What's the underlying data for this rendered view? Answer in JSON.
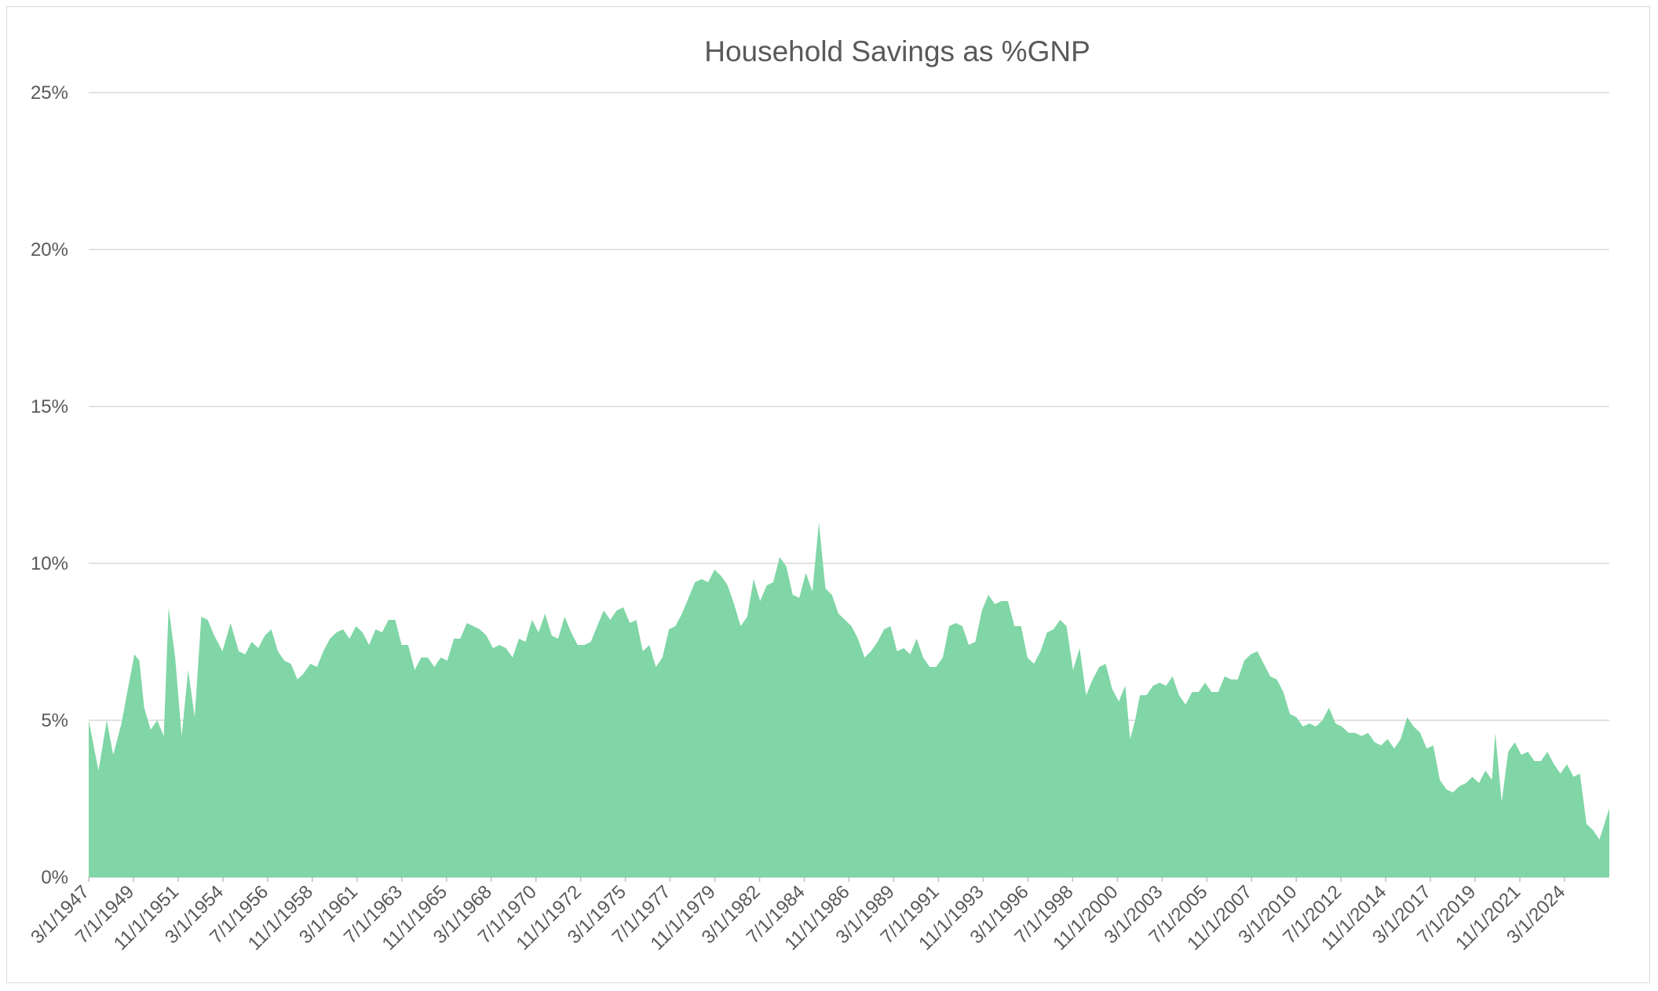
{
  "chart_data": {
    "type": "area",
    "title": "Household Savings as %GNP",
    "xlabel": "",
    "ylabel": "",
    "ylim": [
      0,
      25
    ],
    "y_ticks": [
      0,
      5,
      10,
      15,
      20,
      25
    ],
    "y_tick_labels": [
      "0%",
      "5%",
      "10%",
      "15%",
      "20%",
      "25%"
    ],
    "x_start": "1947-03-01",
    "x_end": "2024-12-01",
    "grid": true,
    "legend": "none",
    "fill_color": "#80D6A6",
    "x_tick_labels": [
      "3/1/1947",
      "7/1/1949",
      "11/1/1951",
      "3/1/1954",
      "7/1/1956",
      "11/1/1958",
      "3/1/1961",
      "7/1/1963",
      "11/1/1965",
      "3/1/1968",
      "7/1/1970",
      "11/1/1972",
      "3/1/1975",
      "7/1/1977",
      "11/1/1979",
      "3/1/1982",
      "7/1/1984",
      "11/1/1986",
      "3/1/1989",
      "7/1/1991",
      "11/1/1993",
      "3/1/1996",
      "7/1/1998",
      "11/1/2000",
      "3/1/2003",
      "7/1/2005",
      "11/1/2007",
      "3/1/2010",
      "7/1/2012",
      "11/1/2014",
      "3/1/2017",
      "7/1/2019",
      "11/1/2021",
      "3/1/2024"
    ],
    "series": [
      {
        "values": [
          {
            "x": "1947-03-01",
            "y": 5.0
          },
          {
            "x": "1947-09-01",
            "y": 3.4
          },
          {
            "x": "1948-02-01",
            "y": 5.0
          },
          {
            "x": "1948-06-01",
            "y": 3.9
          },
          {
            "x": "1948-11-01",
            "y": 4.9
          },
          {
            "x": "1949-03-01",
            "y": 6.0
          },
          {
            "x": "1949-07-01",
            "y": 7.1
          },
          {
            "x": "1949-10-01",
            "y": 6.9
          },
          {
            "x": "1950-01-01",
            "y": 5.4
          },
          {
            "x": "1950-05-01",
            "y": 4.7
          },
          {
            "x": "1950-09-01",
            "y": 5.0
          },
          {
            "x": "1951-01-01",
            "y": 4.5
          },
          {
            "x": "1951-04-01",
            "y": 8.6
          },
          {
            "x": "1951-08-01",
            "y": 7.0
          },
          {
            "x": "1951-12-01",
            "y": 4.5
          },
          {
            "x": "1952-04-01",
            "y": 6.6
          },
          {
            "x": "1952-08-01",
            "y": 5.1
          },
          {
            "x": "1952-12-01",
            "y": 8.3
          },
          {
            "x": "1953-04-01",
            "y": 8.2
          },
          {
            "x": "1953-08-01",
            "y": 7.7
          },
          {
            "x": "1954-01-01",
            "y": 7.2
          },
          {
            "x": "1954-06-01",
            "y": 8.1
          },
          {
            "x": "1954-11-01",
            "y": 7.2
          },
          {
            "x": "1955-03-01",
            "y": 7.1
          },
          {
            "x": "1955-07-01",
            "y": 7.5
          },
          {
            "x": "1955-11-01",
            "y": 7.3
          },
          {
            "x": "1956-03-01",
            "y": 7.7
          },
          {
            "x": "1956-07-01",
            "y": 7.9
          },
          {
            "x": "1956-11-01",
            "y": 7.2
          },
          {
            "x": "1957-03-01",
            "y": 6.9
          },
          {
            "x": "1957-07-01",
            "y": 6.8
          },
          {
            "x": "1957-11-01",
            "y": 6.3
          },
          {
            "x": "1958-03-01",
            "y": 6.5
          },
          {
            "x": "1958-07-01",
            "y": 6.8
          },
          {
            "x": "1958-11-01",
            "y": 6.7
          },
          {
            "x": "1959-03-01",
            "y": 7.2
          },
          {
            "x": "1959-07-01",
            "y": 7.6
          },
          {
            "x": "1959-11-01",
            "y": 7.8
          },
          {
            "x": "1960-03-01",
            "y": 7.9
          },
          {
            "x": "1960-07-01",
            "y": 7.6
          },
          {
            "x": "1960-11-01",
            "y": 8.0
          },
          {
            "x": "1961-03-01",
            "y": 7.8
          },
          {
            "x": "1961-07-01",
            "y": 7.4
          },
          {
            "x": "1961-11-01",
            "y": 7.9
          },
          {
            "x": "1962-03-01",
            "y": 7.8
          },
          {
            "x": "1962-07-01",
            "y": 8.2
          },
          {
            "x": "1962-11-01",
            "y": 8.2
          },
          {
            "x": "1963-03-01",
            "y": 7.4
          },
          {
            "x": "1963-07-01",
            "y": 7.4
          },
          {
            "x": "1963-11-01",
            "y": 6.6
          },
          {
            "x": "1964-03-01",
            "y": 7.0
          },
          {
            "x": "1964-07-01",
            "y": 7.0
          },
          {
            "x": "1964-11-01",
            "y": 6.7
          },
          {
            "x": "1965-03-01",
            "y": 7.0
          },
          {
            "x": "1965-07-01",
            "y": 6.9
          },
          {
            "x": "1965-11-01",
            "y": 7.6
          },
          {
            "x": "1966-03-01",
            "y": 7.6
          },
          {
            "x": "1966-07-01",
            "y": 8.1
          },
          {
            "x": "1966-11-01",
            "y": 8.0
          },
          {
            "x": "1967-03-01",
            "y": 7.9
          },
          {
            "x": "1967-07-01",
            "y": 7.7
          },
          {
            "x": "1967-11-01",
            "y": 7.3
          },
          {
            "x": "1968-03-01",
            "y": 7.4
          },
          {
            "x": "1968-07-01",
            "y": 7.3
          },
          {
            "x": "1968-11-01",
            "y": 7.0
          },
          {
            "x": "1969-03-01",
            "y": 7.6
          },
          {
            "x": "1969-07-01",
            "y": 7.5
          },
          {
            "x": "1969-11-01",
            "y": 8.2
          },
          {
            "x": "1970-03-01",
            "y": 7.8
          },
          {
            "x": "1970-07-01",
            "y": 8.4
          },
          {
            "x": "1970-11-01",
            "y": 7.7
          },
          {
            "x": "1971-03-01",
            "y": 7.6
          },
          {
            "x": "1971-07-01",
            "y": 8.3
          },
          {
            "x": "1971-11-01",
            "y": 7.8
          },
          {
            "x": "1972-03-01",
            "y": 7.4
          },
          {
            "x": "1972-07-01",
            "y": 7.4
          },
          {
            "x": "1972-11-01",
            "y": 7.5
          },
          {
            "x": "1973-03-01",
            "y": 8.0
          },
          {
            "x": "1973-07-01",
            "y": 8.5
          },
          {
            "x": "1973-11-01",
            "y": 8.2
          },
          {
            "x": "1974-03-01",
            "y": 8.5
          },
          {
            "x": "1974-07-01",
            "y": 8.6
          },
          {
            "x": "1974-11-01",
            "y": 8.1
          },
          {
            "x": "1975-03-01",
            "y": 8.2
          },
          {
            "x": "1975-07-01",
            "y": 7.2
          },
          {
            "x": "1975-11-01",
            "y": 7.4
          },
          {
            "x": "1976-03-01",
            "y": 6.7
          },
          {
            "x": "1976-07-01",
            "y": 7.0
          },
          {
            "x": "1976-11-01",
            "y": 7.9
          },
          {
            "x": "1977-03-01",
            "y": 8.0
          },
          {
            "x": "1977-07-01",
            "y": 8.4
          },
          {
            "x": "1977-11-01",
            "y": 8.9
          },
          {
            "x": "1978-03-01",
            "y": 9.4
          },
          {
            "x": "1978-07-01",
            "y": 9.5
          },
          {
            "x": "1978-11-01",
            "y": 9.4
          },
          {
            "x": "1979-03-01",
            "y": 9.8
          },
          {
            "x": "1979-07-01",
            "y": 9.6
          },
          {
            "x": "1979-11-01",
            "y": 9.3
          },
          {
            "x": "1980-03-01",
            "y": 8.7
          },
          {
            "x": "1980-07-01",
            "y": 8.0
          },
          {
            "x": "1980-11-01",
            "y": 8.3
          },
          {
            "x": "1981-03-01",
            "y": 9.5
          },
          {
            "x": "1981-07-01",
            "y": 8.8
          },
          {
            "x": "1981-11-01",
            "y": 9.3
          },
          {
            "x": "1982-03-01",
            "y": 9.4
          },
          {
            "x": "1982-07-01",
            "y": 10.2
          },
          {
            "x": "1982-11-01",
            "y": 9.9
          },
          {
            "x": "1983-03-01",
            "y": 9.0
          },
          {
            "x": "1983-07-01",
            "y": 8.9
          },
          {
            "x": "1983-11-01",
            "y": 9.7
          },
          {
            "x": "1984-03-01",
            "y": 9.1
          },
          {
            "x": "1984-07-01",
            "y": 11.3
          },
          {
            "x": "1984-11-01",
            "y": 9.2
          },
          {
            "x": "1985-03-01",
            "y": 9.0
          },
          {
            "x": "1985-07-01",
            "y": 8.4
          },
          {
            "x": "1985-11-01",
            "y": 8.2
          },
          {
            "x": "1986-03-01",
            "y": 8.0
          },
          {
            "x": "1986-07-01",
            "y": 7.6
          },
          {
            "x": "1986-11-01",
            "y": 7.0
          },
          {
            "x": "1987-03-01",
            "y": 7.2
          },
          {
            "x": "1987-07-01",
            "y": 7.5
          },
          {
            "x": "1987-11-01",
            "y": 7.9
          },
          {
            "x": "1988-03-01",
            "y": 8.0
          },
          {
            "x": "1988-07-01",
            "y": 7.2
          },
          {
            "x": "1988-11-01",
            "y": 7.3
          },
          {
            "x": "1989-03-01",
            "y": 7.1
          },
          {
            "x": "1989-07-01",
            "y": 7.6
          },
          {
            "x": "1989-11-01",
            "y": 7.0
          },
          {
            "x": "1990-03-01",
            "y": 6.7
          },
          {
            "x": "1990-07-01",
            "y": 6.7
          },
          {
            "x": "1990-11-01",
            "y": 7.0
          },
          {
            "x": "1991-03-01",
            "y": 8.0
          },
          {
            "x": "1991-07-01",
            "y": 8.1
          },
          {
            "x": "1991-11-01",
            "y": 8.0
          },
          {
            "x": "1992-03-01",
            "y": 7.4
          },
          {
            "x": "1992-07-01",
            "y": 7.5
          },
          {
            "x": "1992-11-01",
            "y": 8.5
          },
          {
            "x": "1993-03-01",
            "y": 9.0
          },
          {
            "x": "1993-07-01",
            "y": 8.7
          },
          {
            "x": "1993-11-01",
            "y": 8.8
          },
          {
            "x": "1994-03-01",
            "y": 8.8
          },
          {
            "x": "1994-07-01",
            "y": 8.0
          },
          {
            "x": "1994-11-01",
            "y": 8.0
          },
          {
            "x": "1995-03-01",
            "y": 7.0
          },
          {
            "x": "1995-07-01",
            "y": 6.8
          },
          {
            "x": "1995-11-01",
            "y": 7.2
          },
          {
            "x": "1996-03-01",
            "y": 7.8
          },
          {
            "x": "1996-07-01",
            "y": 7.9
          },
          {
            "x": "1996-11-01",
            "y": 8.2
          },
          {
            "x": "1997-03-01",
            "y": 8.0
          },
          {
            "x": "1997-07-01",
            "y": 6.6
          },
          {
            "x": "1997-11-01",
            "y": 7.3
          },
          {
            "x": "1998-03-01",
            "y": 5.8
          },
          {
            "x": "1998-07-01",
            "y": 6.3
          },
          {
            "x": "1998-11-01",
            "y": 6.7
          },
          {
            "x": "1999-03-01",
            "y": 6.8
          },
          {
            "x": "1999-07-01",
            "y": 6.0
          },
          {
            "x": "1999-11-01",
            "y": 5.6
          },
          {
            "x": "2000-03-01",
            "y": 6.1
          },
          {
            "x": "2000-06-01",
            "y": 4.4
          },
          {
            "x": "2000-09-01",
            "y": 5.0
          },
          {
            "x": "2000-12-01",
            "y": 5.8
          },
          {
            "x": "2001-04-01",
            "y": 5.8
          },
          {
            "x": "2001-08-01",
            "y": 6.1
          },
          {
            "x": "2001-12-01",
            "y": 6.2
          },
          {
            "x": "2002-04-01",
            "y": 6.1
          },
          {
            "x": "2002-08-01",
            "y": 6.4
          },
          {
            "x": "2002-12-01",
            "y": 5.8
          },
          {
            "x": "2003-04-01",
            "y": 5.5
          },
          {
            "x": "2003-08-01",
            "y": 5.9
          },
          {
            "x": "2003-12-01",
            "y": 5.9
          },
          {
            "x": "2004-04-01",
            "y": 6.2
          },
          {
            "x": "2004-08-01",
            "y": 5.9
          },
          {
            "x": "2004-12-01",
            "y": 5.9
          },
          {
            "x": "2005-04-01",
            "y": 6.4
          },
          {
            "x": "2005-08-01",
            "y": 6.3
          },
          {
            "x": "2005-12-01",
            "y": 6.3
          },
          {
            "x": "2006-04-01",
            "y": 6.9
          },
          {
            "x": "2006-08-01",
            "y": 7.1
          },
          {
            "x": "2006-12-01",
            "y": 7.2
          },
          {
            "x": "2007-04-01",
            "y": 6.8
          },
          {
            "x": "2007-08-01",
            "y": 6.4
          },
          {
            "x": "2007-12-01",
            "y": 6.3
          },
          {
            "x": "2008-04-01",
            "y": 5.9
          },
          {
            "x": "2008-08-01",
            "y": 5.2
          },
          {
            "x": "2008-12-01",
            "y": 5.1
          },
          {
            "x": "2009-04-01",
            "y": 4.8
          },
          {
            "x": "2009-08-01",
            "y": 4.9
          },
          {
            "x": "2009-12-01",
            "y": 4.8
          },
          {
            "x": "2010-04-01",
            "y": 5.0
          },
          {
            "x": "2010-08-01",
            "y": 5.4
          },
          {
            "x": "2010-12-01",
            "y": 4.9
          },
          {
            "x": "2011-04-01",
            "y": 4.8
          },
          {
            "x": "2011-08-01",
            "y": 4.6
          },
          {
            "x": "2011-12-01",
            "y": 4.6
          },
          {
            "x": "2012-04-01",
            "y": 4.5
          },
          {
            "x": "2012-08-01",
            "y": 4.6
          },
          {
            "x": "2012-12-01",
            "y": 4.3
          },
          {
            "x": "2013-04-01",
            "y": 4.2
          },
          {
            "x": "2013-08-01",
            "y": 4.4
          },
          {
            "x": "2013-12-01",
            "y": 4.1
          },
          {
            "x": "2014-04-01",
            "y": 4.4
          },
          {
            "x": "2014-08-01",
            "y": 5.1
          },
          {
            "x": "2014-12-01",
            "y": 4.8
          },
          {
            "x": "2015-04-01",
            "y": 4.6
          },
          {
            "x": "2015-08-01",
            "y": 4.1
          },
          {
            "x": "2015-12-01",
            "y": 4.2
          },
          {
            "x": "2016-04-01",
            "y": 3.1
          },
          {
            "x": "2016-08-01",
            "y": 2.8
          },
          {
            "x": "2016-12-01",
            "y": 2.7
          },
          {
            "x": "2017-04-01",
            "y": 2.9
          },
          {
            "x": "2017-08-01",
            "y": 3.0
          },
          {
            "x": "2017-12-01",
            "y": 3.2
          },
          {
            "x": "2018-04-01",
            "y": 3.0
          },
          {
            "x": "2018-08-01",
            "y": 3.4
          },
          {
            "x": "2018-12-01",
            "y": 3.1
          },
          {
            "x": "2019-02-01",
            "y": 4.6
          },
          {
            "x": "2019-06-01",
            "y": 2.4
          },
          {
            "x": "2019-10-01",
            "y": 4.0
          },
          {
            "x": "2020-02-01",
            "y": 4.3
          },
          {
            "x": "2020-06-01",
            "y": 3.9
          },
          {
            "x": "2020-10-01",
            "y": 4.0
          },
          {
            "x": "2021-02-01",
            "y": 3.7
          },
          {
            "x": "2021-06-01",
            "y": 3.7
          },
          {
            "x": "2021-10-01",
            "y": 4.0
          },
          {
            "x": "2022-02-01",
            "y": 3.6
          },
          {
            "x": "2022-06-01",
            "y": 3.3
          },
          {
            "x": "2022-10-01",
            "y": 3.6
          },
          {
            "x": "2023-02-01",
            "y": 3.2
          },
          {
            "x": "2023-06-01",
            "y": 3.3
          },
          {
            "x": "2023-10-01",
            "y": 1.7
          },
          {
            "x": "2024-02-01",
            "y": 1.5
          },
          {
            "x": "2024-06-01",
            "y": 1.2
          },
          {
            "x": "2024-12-01",
            "y": 2.2
          }
        ]
      }
    ]
  }
}
